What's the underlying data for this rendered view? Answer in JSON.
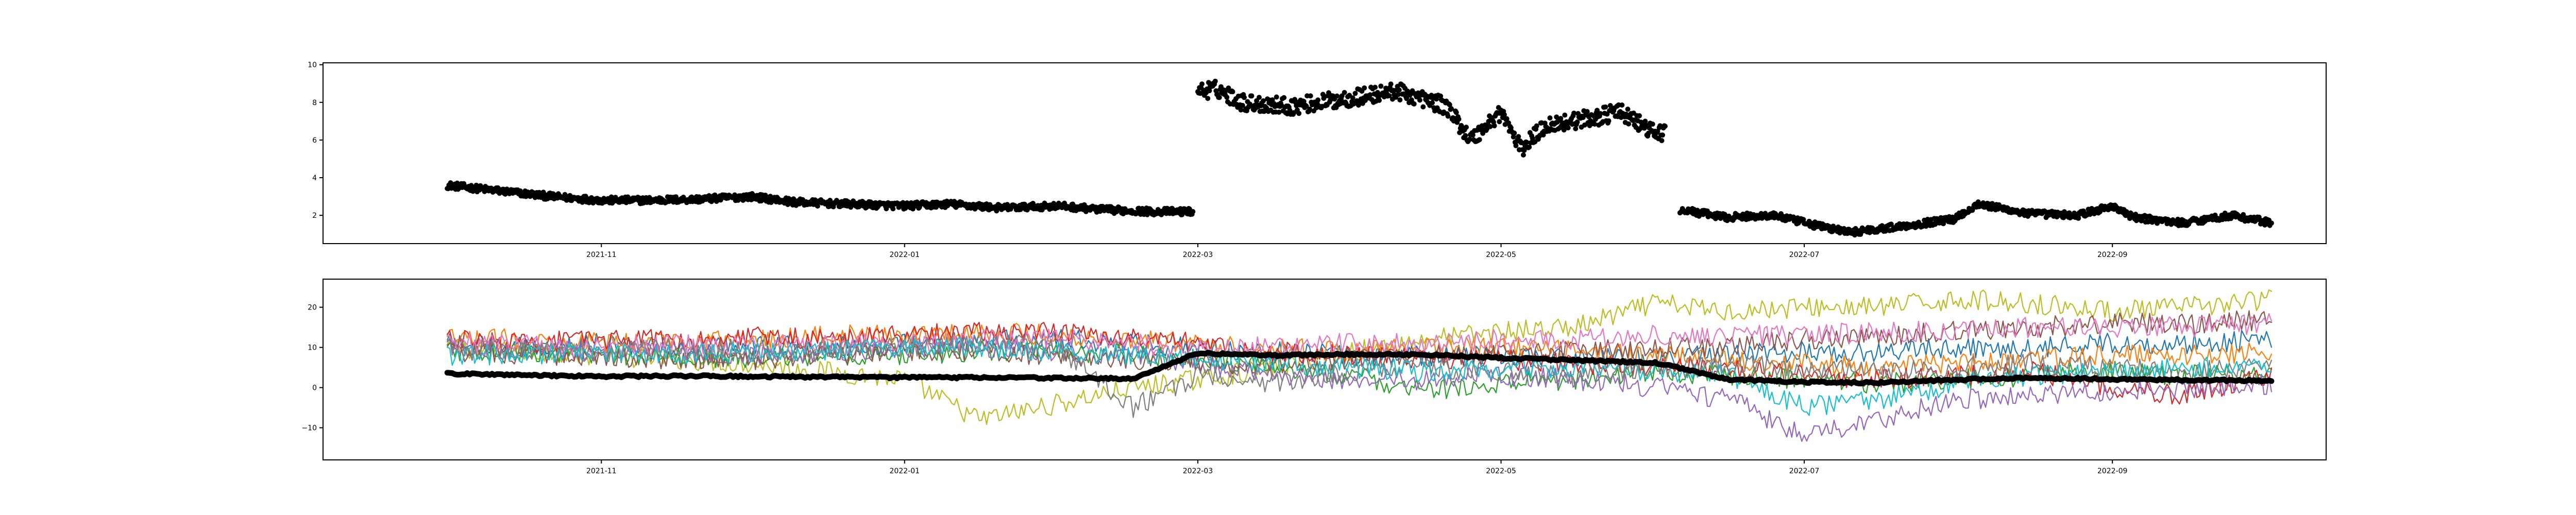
{
  "colors": {
    "black_series": "#000000",
    "tab10": [
      "#1f77b4",
      "#ff7f0e",
      "#2ca02c",
      "#d62728",
      "#9467bd",
      "#8c564b",
      "#e377c2",
      "#7f7f7f",
      "#bcbd22",
      "#17becf"
    ]
  },
  "chart_data": [
    {
      "type": "scatter",
      "title": "",
      "xlabel": "",
      "ylabel": "",
      "xlim": [
        "2021-09-06",
        "2022-10-14"
      ],
      "ylim": [
        0.5,
        10.1
      ],
      "x_tick_labels": [
        "2021-11",
        "2022-01",
        "2022-03",
        "2022-05",
        "2022-07",
        "2022-09"
      ],
      "x_tick_dates": [
        "2021-11-01",
        "2022-01-01",
        "2022-03-01",
        "2022-05-01",
        "2022-07-01",
        "2022-09-01"
      ],
      "y_ticks": [
        2,
        4,
        6,
        8,
        10
      ],
      "grid": false,
      "series": [
        {
          "color": "#000000",
          "segments": [
            {
              "x": [
                "2021-10-01",
                "2021-10-08",
                "2021-10-15",
                "2021-10-22",
                "2021-11-01",
                "2021-11-10",
                "2021-11-20",
                "2021-12-01",
                "2021-12-10",
                "2021-12-20",
                "2022-01-01",
                "2022-01-10",
                "2022-01-20",
                "2022-02-01",
                "2022-02-10",
                "2022-02-20",
                "2022-02-28"
              ],
              "y": [
                3.6,
                3.4,
                3.2,
                3.0,
                2.8,
                2.8,
                2.85,
                3.0,
                2.7,
                2.6,
                2.5,
                2.6,
                2.4,
                2.5,
                2.3,
                2.2,
                2.2
              ]
            },
            {
              "x": [
                "2022-03-01",
                "2022-03-05",
                "2022-03-10",
                "2022-03-20",
                "2022-03-31",
                "2022-04-10",
                "2022-04-20",
                "2022-04-25",
                "2022-05-01",
                "2022-05-05",
                "2022-05-10",
                "2022-05-20",
                "2022-05-25",
                "2022-05-31",
                "2022-06-03"
              ],
              "y": [
                8.6,
                8.7,
                8.0,
                7.8,
                8.2,
                8.6,
                7.8,
                6.0,
                7.5,
                5.5,
                6.8,
                7.2,
                7.5,
                6.5,
                6.3
              ]
            },
            {
              "x": [
                "2022-06-06",
                "2022-06-15",
                "2022-06-25",
                "2022-07-01",
                "2022-07-10",
                "2022-07-20",
                "2022-07-31",
                "2022-08-05",
                "2022-08-15",
                "2022-08-25",
                "2022-09-01",
                "2022-09-05",
                "2022-09-15",
                "2022-09-25",
                "2022-10-03"
              ],
              "y": [
                2.3,
                1.9,
                2.0,
                1.6,
                1.1,
                1.4,
                1.8,
                2.6,
                2.1,
                2.0,
                2.5,
                1.9,
                1.6,
                2.0,
                1.6
              ]
            }
          ]
        }
      ]
    },
    {
      "type": "line",
      "title": "",
      "xlabel": "",
      "ylabel": "",
      "xlim": [
        "2021-09-06",
        "2022-10-14"
      ],
      "ylim": [
        -18,
        27
      ],
      "x_tick_labels": [
        "2021-11",
        "2022-01",
        "2022-03",
        "2022-05",
        "2022-07",
        "2022-09"
      ],
      "x_tick_dates": [
        "2021-11-01",
        "2022-01-01",
        "2022-03-01",
        "2022-05-01",
        "2022-07-01",
        "2022-09-01"
      ],
      "y_tick_labels": [
        "−10",
        "0",
        "10",
        "20"
      ],
      "y_ticks": [
        -10,
        0,
        10,
        20
      ],
      "grid": false,
      "x": [
        "2021-10-01",
        "2021-10-16",
        "2021-11-01",
        "2021-11-16",
        "2021-12-01",
        "2021-12-16",
        "2022-01-01",
        "2022-01-16",
        "2022-02-01",
        "2022-02-16",
        "2022-03-01",
        "2022-03-16",
        "2022-04-01",
        "2022-04-16",
        "2022-05-01",
        "2022-05-16",
        "2022-06-01",
        "2022-06-16",
        "2022-07-01",
        "2022-07-16",
        "2022-08-01",
        "2022-08-16",
        "2022-09-01",
        "2022-09-16",
        "2022-10-03"
      ],
      "series": [
        {
          "color": "#bcbd22",
          "values": [
            10,
            9,
            8,
            7,
            6,
            4,
            2,
            -8,
            -4,
            0,
            2,
            5,
            9,
            12,
            14,
            15,
            21,
            19,
            20,
            20,
            22,
            21,
            19,
            20,
            22
          ]
        },
        {
          "color": "#1f77b4",
          "values": [
            11,
            10,
            11,
            10,
            11,
            10,
            11,
            12,
            12,
            11,
            10,
            9,
            8,
            8,
            8,
            7,
            8,
            8,
            9,
            9,
            10,
            10,
            11,
            11,
            12
          ]
        },
        {
          "color": "#ff7f0e",
          "values": [
            12,
            12,
            11,
            12,
            12,
            13,
            13,
            14,
            13,
            12,
            11,
            10,
            9,
            10,
            10,
            9,
            8,
            7,
            6,
            5,
            6,
            7,
            8,
            8,
            9
          ]
        },
        {
          "color": "#2ca02c",
          "values": [
            9,
            9,
            8,
            8,
            7,
            8,
            8,
            9,
            9,
            8,
            7,
            5,
            3,
            -1,
            1,
            2,
            4,
            3,
            2,
            1,
            2,
            3,
            4,
            3,
            4
          ]
        },
        {
          "color": "#d62728",
          "values": [
            12,
            11,
            12,
            12,
            13,
            12,
            13,
            14,
            14,
            12,
            11,
            9,
            8,
            7,
            7,
            6,
            5,
            5,
            3,
            2,
            3,
            4,
            0,
            -2,
            3
          ]
        },
        {
          "color": "#9467bd",
          "values": [
            10,
            10,
            9,
            9,
            8,
            9,
            10,
            10,
            9,
            8,
            6,
            3,
            2,
            2,
            3,
            2,
            0,
            -3,
            -12,
            -8,
            -3,
            -2,
            -1,
            0,
            1
          ]
        },
        {
          "color": "#8c564b",
          "values": [
            9,
            8,
            8,
            7,
            7,
            8,
            9,
            9,
            8,
            7,
            6,
            6,
            7,
            8,
            8,
            9,
            10,
            10,
            12,
            13,
            14,
            15,
            16,
            16,
            17
          ]
        },
        {
          "color": "#e377c2",
          "values": [
            11,
            11,
            10,
            11,
            10,
            11,
            11,
            12,
            12,
            11,
            10,
            10,
            11,
            11,
            12,
            12,
            13,
            13,
            13,
            14,
            14,
            15,
            15,
            15,
            16
          ]
        },
        {
          "color": "#7f7f7f",
          "values": [
            10,
            9,
            9,
            10,
            9,
            9,
            10,
            11,
            10,
            -5,
            3,
            1,
            4,
            5,
            4,
            3,
            5,
            6,
            5,
            4,
            5,
            6,
            5,
            4,
            5
          ]
        },
        {
          "color": "#17becf",
          "values": [
            8,
            8,
            9,
            8,
            9,
            9,
            10,
            10,
            9,
            8,
            7,
            6,
            5,
            4,
            5,
            5,
            4,
            3,
            -5,
            -3,
            1,
            3,
            4,
            5,
            6
          ]
        },
        {
          "color": "#000000",
          "thick": true,
          "values": [
            3.5,
            3.1,
            2.8,
            2.9,
            2.8,
            2.6,
            2.5,
            2.5,
            2.4,
            2.2,
            8.6,
            8.0,
            8.3,
            8.2,
            7.4,
            6.8,
            6.2,
            2.0,
            1.4,
            1.2,
            2.0,
            2.4,
            2.1,
            1.9,
            1.7
          ]
        }
      ]
    }
  ]
}
